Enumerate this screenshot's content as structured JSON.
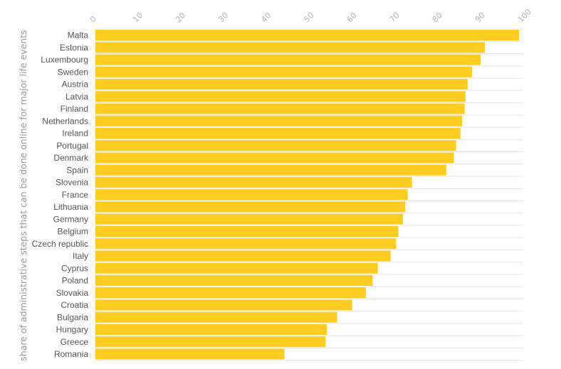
{
  "chart_data": {
    "type": "bar",
    "orientation": "horizontal",
    "title": "",
    "xlabel": "",
    "ylabel": "share of administrative steps that can be done online for major life events",
    "xlim": [
      0,
      100
    ],
    "x_ticks": [
      0,
      10,
      20,
      30,
      40,
      50,
      60,
      70,
      80,
      90,
      100
    ],
    "grid": true,
    "bar_color": "#FFCC22",
    "categories": [
      "Malta",
      "Estonia",
      "Luxembourg",
      "Sweden",
      "Austria",
      "Latvia",
      "Finland",
      "Netherlands",
      "Ireland",
      "Portugal",
      "Denmark",
      "Spain",
      "Slovenia",
      "France",
      "Lithuania",
      "Germany",
      "Belgium",
      "Czech republic",
      "Italy",
      "Cyprus",
      "Poland",
      "Slovakia",
      "Croatia",
      "Bulgaria",
      "Hungary",
      "Greece",
      "Romania"
    ],
    "values": [
      99,
      91,
      90,
      88,
      87,
      86.5,
      86.3,
      85.7,
      85.3,
      84.3,
      83.8,
      82,
      74,
      73,
      72.4,
      71.9,
      70.8,
      70.3,
      69,
      66,
      64.8,
      63.2,
      60,
      56.5,
      54.1,
      53.8,
      44.2
    ]
  }
}
